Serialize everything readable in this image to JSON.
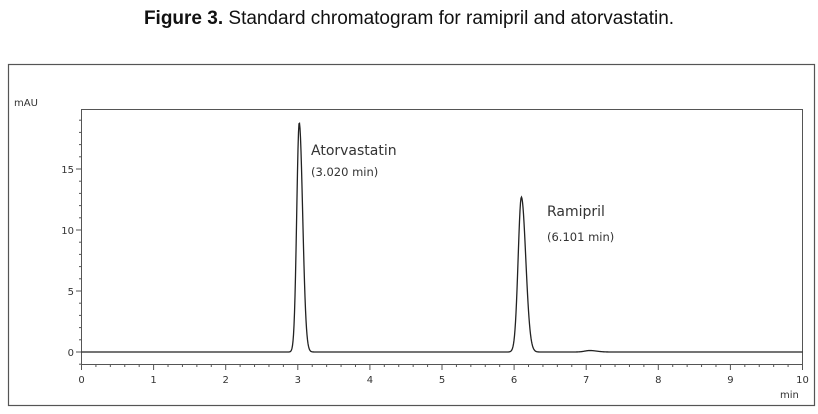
{
  "caption": {
    "label": "Figure 3.",
    "text": " Standard chromatogram for ramipril and atorvastatin."
  },
  "chart_data": {
    "type": "line",
    "title": "Standard chromatogram for ramipril and atorvastatin",
    "xlabel": "min",
    "ylabel": "mAU",
    "xlim": [
      0,
      10
    ],
    "ylim": [
      -1,
      20
    ],
    "xticks": [
      0,
      1,
      2,
      3,
      4,
      5,
      6,
      7,
      8,
      9,
      10
    ],
    "yticks": [
      0,
      5,
      10,
      15
    ],
    "grid": false,
    "peaks": [
      {
        "name": "Atorvastatin",
        "retention_time_label": "(3.020 min)",
        "rt": 3.02,
        "height": 18.8,
        "width_sigma": 0.035
      },
      {
        "name": "Ramipril",
        "retention_time_label": "(6.101 min)",
        "rt": 6.101,
        "height": 12.7,
        "width_sigma": 0.045
      },
      {
        "name": "",
        "retention_time_label": "",
        "rt": 7.05,
        "height": 0.12,
        "width_sigma": 0.07
      }
    ],
    "baseline": 0
  },
  "colors": {
    "trace": "#222222",
    "frame": "#444444"
  }
}
